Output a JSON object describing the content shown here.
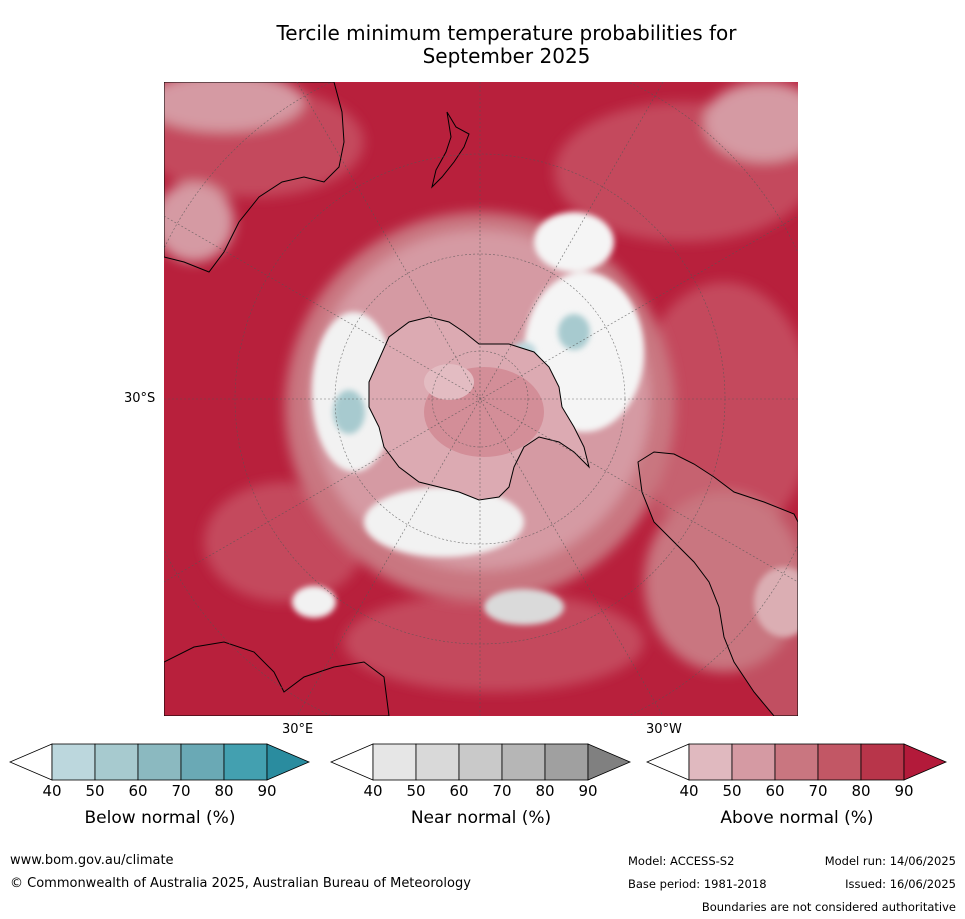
{
  "title_line1": "Tercile minimum temperature probabilities for",
  "title_line2": "September 2025",
  "map": {
    "label_lat": "30°S",
    "label_lon_east": "30°E",
    "label_lon_west": "30°W"
  },
  "legends": [
    {
      "title": "Below normal (%)",
      "colors": [
        "#ffffff",
        "#bcd7dd",
        "#a7cacf",
        "#8bb9c0",
        "#6aa9b5",
        "#43a0b0",
        "#2a8c9f"
      ]
    },
    {
      "title": "Near normal (%)",
      "colors": [
        "#ffffff",
        "#e6e6e6",
        "#d9d9d9",
        "#c9c9c9",
        "#b6b6b6",
        "#a0a0a0",
        "#808080"
      ]
    },
    {
      "title": "Above normal (%)",
      "colors": [
        "#ffffff",
        "#e0b9bf",
        "#d59aa3",
        "#c97680",
        "#c25765",
        "#b8354a",
        "#b31a3a"
      ]
    }
  ],
  "tick_labels": [
    "40",
    "50",
    "60",
    "70",
    "80",
    "90"
  ],
  "footer": {
    "website": "www.bom.gov.au/climate",
    "copyright": "© Commonwealth of Australia 2025, Australian Bureau of Meteorology",
    "model": "Model: ACCESS-S2",
    "model_run": "Model run: 14/06/2025",
    "base_period": "Base period: 1981-2018",
    "issued": "Issued: 16/06/2025",
    "disclaimer": "Boundaries are not considered authoritative"
  }
}
